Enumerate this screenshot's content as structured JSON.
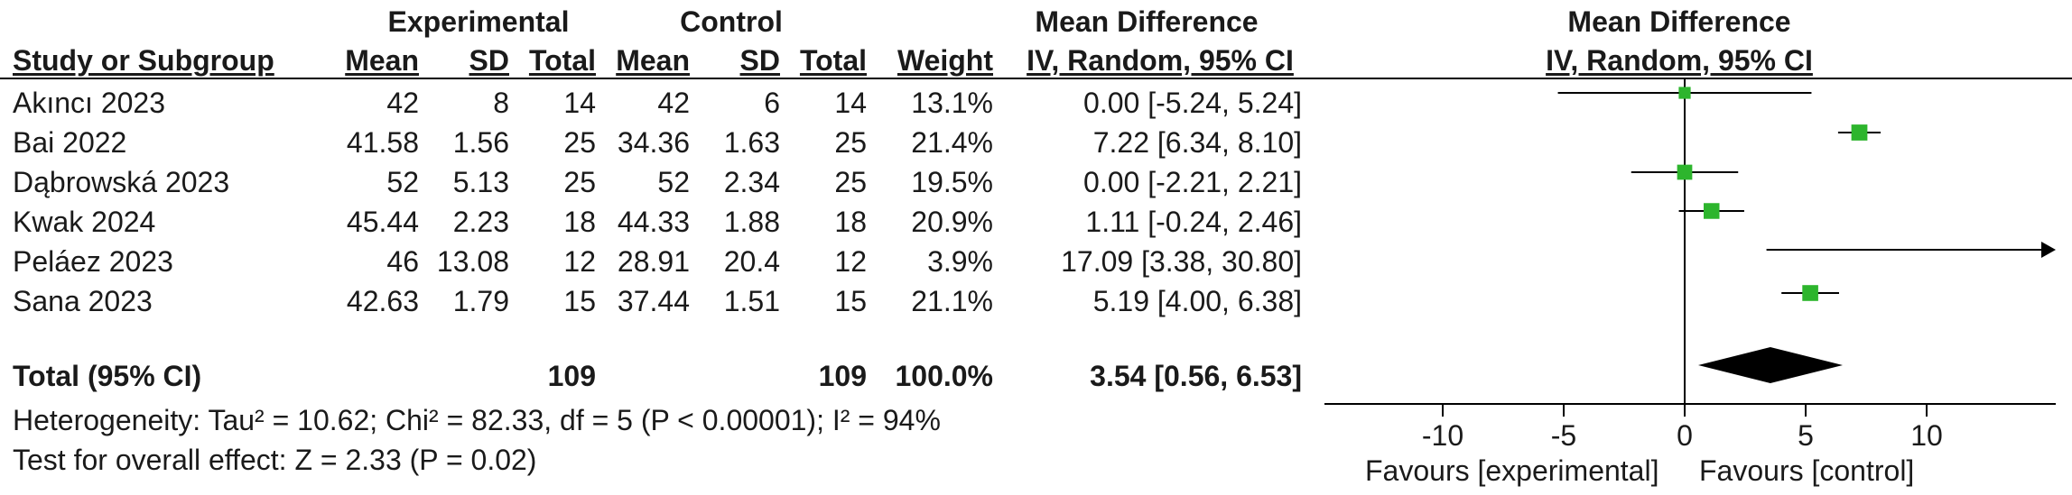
{
  "headers": {
    "experimental": "Experimental",
    "control": "Control",
    "mean_difference": "Mean Difference",
    "mean_difference_plot": "Mean Difference",
    "study_or_subgroup": "Study or Subgroup",
    "mean": "Mean",
    "sd": "SD",
    "total": "Total",
    "weight": "Weight",
    "iv_random": "IV, Random, 95% CI",
    "iv_random_plot": "IV, Random, 95% CI"
  },
  "rows": [
    {
      "study": "Akıncı 2023",
      "e_mean": "42",
      "e_sd": "8",
      "e_total": "14",
      "c_mean": "42",
      "c_sd": "6",
      "c_total": "14",
      "weight": "13.1%",
      "md": "0.00 [-5.24, 5.24]"
    },
    {
      "study": "Bai 2022",
      "e_mean": "41.58",
      "e_sd": "1.56",
      "e_total": "25",
      "c_mean": "34.36",
      "c_sd": "1.63",
      "c_total": "25",
      "weight": "21.4%",
      "md": "7.22 [6.34, 8.10]"
    },
    {
      "study": "Dąbrowská 2023",
      "e_mean": "52",
      "e_sd": "5.13",
      "e_total": "25",
      "c_mean": "52",
      "c_sd": "2.34",
      "c_total": "25",
      "weight": "19.5%",
      "md": "0.00 [-2.21, 2.21]"
    },
    {
      "study": "Kwak 2024",
      "e_mean": "45.44",
      "e_sd": "2.23",
      "e_total": "18",
      "c_mean": "44.33",
      "c_sd": "1.88",
      "c_total": "18",
      "weight": "20.9%",
      "md": "1.11 [-0.24, 2.46]"
    },
    {
      "study": "Peláez 2023",
      "e_mean": "46",
      "e_sd": "13.08",
      "e_total": "12",
      "c_mean": "28.91",
      "c_sd": "20.4",
      "c_total": "12",
      "weight": "3.9%",
      "md": "17.09 [3.38, 30.80]"
    },
    {
      "study": "Sana 2023",
      "e_mean": "42.63",
      "e_sd": "1.79",
      "e_total": "15",
      "c_mean": "37.44",
      "c_sd": "1.51",
      "c_total": "15",
      "weight": "21.1%",
      "md": "5.19 [4.00, 6.38]"
    }
  ],
  "total": {
    "label": "Total (95% CI)",
    "e_total": "109",
    "c_total": "109",
    "weight": "100.0%",
    "md": "3.54 [0.56, 6.53]"
  },
  "heterogeneity": "Heterogeneity: Tau² = 10.62; Chi² = 82.33, df = 5 (P < 0.00001); I² = 94%",
  "overall_effect": "Test for overall effect: Z = 2.33 (P = 0.02)",
  "axis": {
    "favours_left": "Favours [experimental]",
    "favours_right": "Favours [control]"
  },
  "chart_data": {
    "type": "forest",
    "xlim": [
      -15,
      15
    ],
    "ticks": [
      -10,
      -5,
      0,
      5,
      10
    ],
    "tick_labels": [
      "-10",
      "-5",
      "0",
      "5",
      "10"
    ],
    "marker_color": "#2db52d",
    "studies": [
      {
        "name": "Akıncı 2023",
        "md": 0.0,
        "lo": -5.24,
        "hi": 5.24,
        "weight": 13.1
      },
      {
        "name": "Bai 2022",
        "md": 7.22,
        "lo": 6.34,
        "hi": 8.1,
        "weight": 21.4
      },
      {
        "name": "Dąbrowská 2023",
        "md": 0.0,
        "lo": -2.21,
        "hi": 2.21,
        "weight": 19.5
      },
      {
        "name": "Kwak 2024",
        "md": 1.11,
        "lo": -0.24,
        "hi": 2.46,
        "weight": 20.9
      },
      {
        "name": "Peláez 2023",
        "md": 17.09,
        "lo": 3.38,
        "hi": 30.8,
        "weight": 3.9
      },
      {
        "name": "Sana 2023",
        "md": 5.19,
        "lo": 4.0,
        "hi": 6.38,
        "weight": 21.1
      }
    ],
    "pooled": {
      "md": 3.54,
      "lo": 0.56,
      "hi": 6.53
    }
  }
}
